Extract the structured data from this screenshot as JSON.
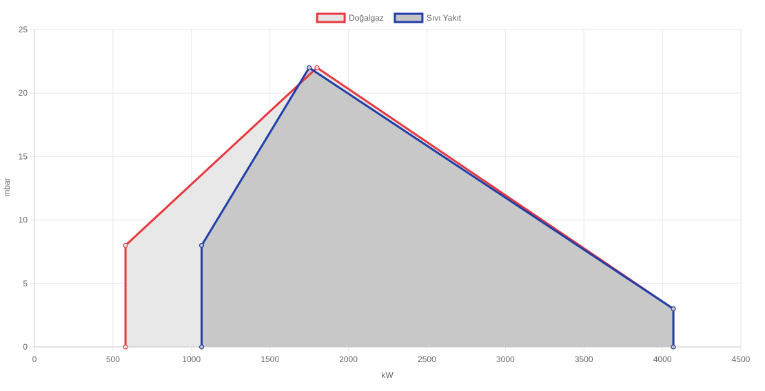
{
  "chart_data": {
    "type": "area",
    "xlabel": "kW",
    "ylabel": "mbar",
    "xlim": [
      0,
      4500
    ],
    "ylim": [
      0,
      25
    ],
    "x_ticks": [
      0,
      500,
      1000,
      1500,
      2000,
      2500,
      3000,
      3500,
      4000,
      4500
    ],
    "y_ticks": [
      0,
      5,
      10,
      15,
      20,
      25
    ],
    "grid": true,
    "legend_position": "top-center",
    "series": [
      {
        "name": "Doğalgaz",
        "color": "#e8373f",
        "fill": "#e5e5e5",
        "points": [
          [
            580,
            0
          ],
          [
            580,
            8
          ],
          [
            1800,
            22
          ],
          [
            4070,
            3
          ],
          [
            4070,
            0
          ]
        ]
      },
      {
        "name": "Sıvı Yakıt",
        "color": "#1f3ea8",
        "fill": "#c4c4c4",
        "points": [
          [
            1065,
            0
          ],
          [
            1065,
            8
          ],
          [
            1750,
            22
          ],
          [
            4070,
            3
          ],
          [
            4070,
            0
          ]
        ]
      }
    ]
  }
}
